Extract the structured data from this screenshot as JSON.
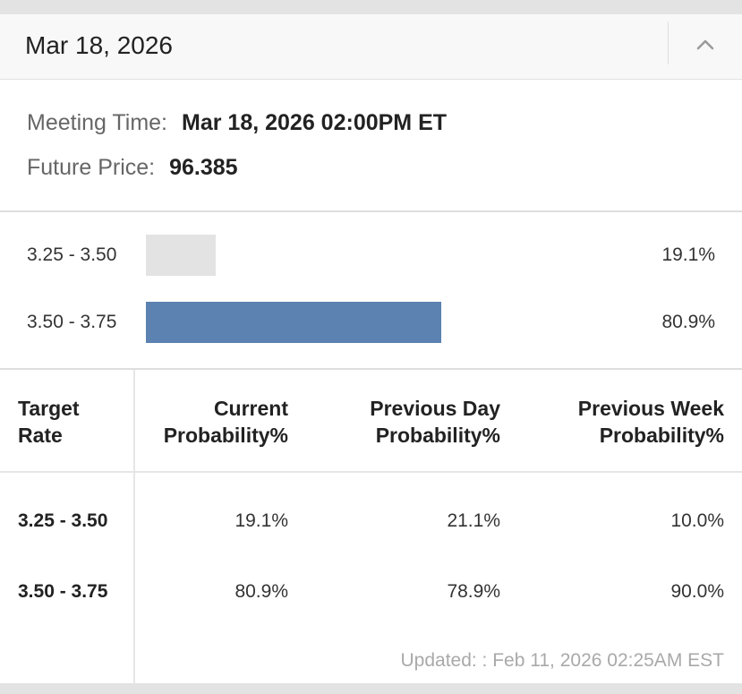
{
  "header": {
    "title": "Mar 18, 2026",
    "collapse_icon": "chevron-up-icon"
  },
  "meeting": {
    "time_label": "Meeting Time:",
    "time_value": "Mar 18, 2026 02:00PM ET",
    "price_label": "Future Price:",
    "price_value": "96.385"
  },
  "bars": [
    {
      "range": "3.25 - 3.50",
      "percent_text": "19.1%",
      "value": 19.1,
      "color": "#e3e3e3"
    },
    {
      "range": "3.50 - 3.75",
      "percent_text": "80.9%",
      "value": 80.9,
      "color": "#5b82b0"
    }
  ],
  "table": {
    "headers": {
      "target": [
        "Target",
        "Rate"
      ],
      "current": [
        "Current",
        "Probability%"
      ],
      "prev_day": [
        "Previous Day",
        "Probability%"
      ],
      "prev_week": [
        "Previous Week",
        "Probability%"
      ]
    },
    "rows": [
      {
        "rate": "3.25 - 3.50",
        "current": "19.1%",
        "prev_day": "21.1%",
        "prev_week": "10.0%"
      },
      {
        "rate": "3.50 - 3.75",
        "current": "80.9%",
        "prev_day": "78.9%",
        "prev_week": "90.0%"
      }
    ],
    "updated": "Updated: : Feb 11, 2026 02:25AM EST"
  }
}
